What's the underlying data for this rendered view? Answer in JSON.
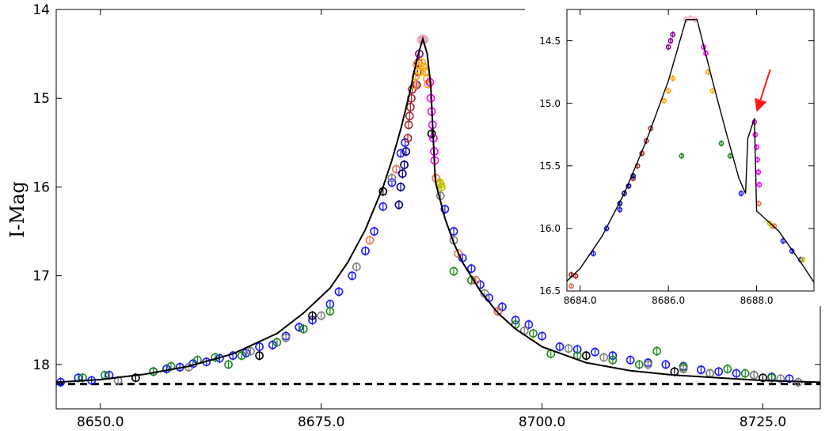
{
  "chart_data": [
    {
      "type": "scatter",
      "title": "",
      "xlabel": "",
      "ylabel": "I-Mag",
      "xlim": [
        8645.0,
        8731.5
      ],
      "ylim": [
        18.5,
        14.0
      ],
      "y_inverted": true,
      "x_ticks": [
        8650.0,
        8675.0,
        8700.0,
        8725.0
      ],
      "x_tick_labels": [
        "8650.0",
        "8675.0",
        "8700.0",
        "8725.0"
      ],
      "y_ticks": [
        14,
        15,
        16,
        17,
        18
      ],
      "y_tick_labels": [
        "14",
        "15",
        "16",
        "17",
        "18"
      ],
      "baseline_mag": 18.22,
      "model": {
        "t0": 8686.5,
        "peak_mag": 14.33,
        "x": [
          8645,
          8650,
          8655,
          8660,
          8665,
          8670,
          8673,
          8676,
          8678,
          8680,
          8682,
          8683,
          8684,
          8685,
          8685.5,
          8686,
          8686.5,
          8687,
          8687.4,
          8687.9,
          8688,
          8689,
          8690,
          8691,
          8693,
          8695,
          8697,
          8700,
          8705,
          8710,
          8715,
          8720,
          8725,
          8731.5
        ],
        "y": [
          18.2,
          18.17,
          18.11,
          18.02,
          17.88,
          17.65,
          17.42,
          17.14,
          16.85,
          16.48,
          16.0,
          15.7,
          15.35,
          14.95,
          14.71,
          14.5,
          14.33,
          14.5,
          14.86,
          15.9,
          15.97,
          16.35,
          16.63,
          16.85,
          17.17,
          17.42,
          17.6,
          17.8,
          17.98,
          18.07,
          18.12,
          18.15,
          18.18,
          18.2
        ]
      },
      "series": [
        {
          "name": "blue observatory",
          "color": "#1a1aff",
          "x": [
            8645.5,
            8647.5,
            8649,
            8651,
            8656,
            8657.5,
            8659,
            8660.5,
            8662,
            8663.5,
            8665,
            8666.5,
            8668,
            8669.5,
            8671,
            8672.5,
            8674,
            8676,
            8677,
            8678.5,
            8680,
            8681,
            8682,
            8683,
            8684,
            8684.5,
            8689,
            8690,
            8691,
            8692,
            8693,
            8694,
            8695.5,
            8697,
            8698.5,
            8700,
            8702,
            8704,
            8706,
            8708,
            8710,
            8712,
            8714,
            8716,
            8718,
            8720,
            8722,
            8724,
            8726,
            8728
          ],
          "y": [
            18.2,
            18.15,
            18.18,
            18.12,
            18.08,
            18.05,
            18.03,
            17.99,
            17.97,
            17.93,
            17.9,
            17.87,
            17.8,
            17.78,
            17.68,
            17.58,
            17.5,
            17.32,
            17.18,
            17.0,
            16.72,
            16.5,
            16.22,
            15.95,
            15.62,
            15.5,
            16.25,
            16.5,
            16.8,
            16.92,
            17.1,
            17.25,
            17.35,
            17.5,
            17.55,
            17.68,
            17.8,
            17.83,
            17.86,
            17.9,
            17.95,
            17.98,
            18.0,
            18.02,
            18.06,
            18.08,
            18.1,
            18.12,
            18.14,
            18.16
          ]
        },
        {
          "name": "green observatory",
          "color": "#1f8a1f",
          "x": [
            8648,
            8650.5,
            8656,
            8658,
            8661,
            8663,
            8664.5,
            8666,
            8670,
            8673,
            8676,
            8690,
            8692,
            8697,
            8699,
            8701,
            8704,
            8708,
            8711,
            8713,
            8716,
            8719,
            8721,
            8723,
            8726
          ],
          "y": [
            18.15,
            18.12,
            18.08,
            18.02,
            17.95,
            17.92,
            18.0,
            17.9,
            17.75,
            17.6,
            17.4,
            16.95,
            17.05,
            17.55,
            17.65,
            17.88,
            17.9,
            17.95,
            18.0,
            17.85,
            18.03,
            18.1,
            18.05,
            18.1,
            18.15
          ]
        },
        {
          "name": "grey observatory",
          "color": "#808080",
          "x": [
            8652,
            8660,
            8667,
            8671,
            8675,
            8679,
            8683,
            8686.5,
            8688.5,
            8690,
            8693.5,
            8698,
            8703,
            8707,
            8712,
            8716,
            8719,
            8724,
            8727,
            8729
          ],
          "y": [
            18.18,
            18.03,
            17.85,
            17.7,
            17.45,
            16.9,
            15.9,
            14.34,
            16.1,
            16.6,
            17.2,
            17.62,
            17.82,
            17.92,
            18.0,
            18.05,
            18.1,
            18.12,
            18.16,
            18.2
          ]
        },
        {
          "name": "black observatory",
          "color": "#000000",
          "x": [
            8654,
            8668,
            8674,
            8682,
            8687.5,
            8695,
            8705,
            8715,
            8725
          ],
          "y": [
            18.15,
            17.9,
            17.45,
            16.05,
            15.4,
            17.4,
            17.9,
            18.08,
            18.15
          ]
        },
        {
          "name": "salmon observatory",
          "color": "#e9735a",
          "x": [
            8680.5,
            8683.5,
            8688,
            8690.5,
            8692.5,
            8695
          ],
          "y": [
            16.6,
            15.8,
            15.9,
            16.75,
            17.05,
            17.4
          ]
        },
        {
          "name": "brown observatory",
          "color": "#a52a2a",
          "x": [
            8684.8,
            8684.9,
            8685,
            8685.1,
            8685.2,
            8685.3
          ],
          "y": [
            15.45,
            15.3,
            15.2,
            15.1,
            15.0,
            14.9
          ]
        },
        {
          "name": "navy observatory",
          "color": "#00008b",
          "x": [
            8683.8,
            8684,
            8684.2,
            8684.4,
            8684.6
          ],
          "y": [
            16.2,
            16.0,
            15.85,
            15.75,
            15.6
          ]
        },
        {
          "name": "purple observatory",
          "color": "#8b008b",
          "x": [
            8685.8,
            8685.9,
            8686,
            8686.1
          ],
          "y": [
            14.85,
            14.7,
            14.6,
            14.5
          ]
        },
        {
          "name": "orange observatory",
          "color": "#ffa500",
          "x": [
            8685.6,
            8685.7,
            8685.8,
            8686.2,
            8686.4,
            8686.6,
            8686.8,
            8687,
            8687.1
          ],
          "y": [
            14.85,
            14.75,
            14.62,
            14.7,
            14.6,
            14.65,
            14.7,
            14.78,
            14.84
          ]
        },
        {
          "name": "magenta observatory",
          "color": "#ff00ff",
          "x": [
            8687.3,
            8687.4,
            8687.5,
            8687.6,
            8687.7,
            8687.8,
            8687.85
          ],
          "y": [
            14.82,
            15.0,
            15.15,
            15.3,
            15.45,
            15.6,
            15.7
          ]
        },
        {
          "name": "pink observatory",
          "color": "#f4a6c0",
          "x": [
            8686.3,
            8686.5,
            8686.7
          ],
          "y": [
            14.34,
            14.33,
            14.34
          ]
        },
        {
          "name": "olive observatory",
          "color": "#c0c000",
          "x": [
            8688.4,
            8688.5,
            8688.6
          ],
          "y": [
            15.95,
            15.97,
            16.0
          ]
        }
      ]
    },
    {
      "type": "scatter",
      "title": "",
      "xlabel": "",
      "ylabel": "",
      "xlim": [
        8683.7,
        8689.3
      ],
      "ylim": [
        16.5,
        14.25
      ],
      "y_inverted": true,
      "x_ticks": [
        8684.0,
        8686.0,
        8688.0
      ],
      "x_tick_labels": [
        "8684.0",
        "8686.0",
        "8688.0"
      ],
      "y_ticks": [
        14.5,
        15.0,
        15.5,
        16.0,
        16.5
      ],
      "y_tick_labels": [
        "14.5",
        "15.0",
        "15.5",
        "16.0",
        "16.5"
      ],
      "annotation": "red arrow pointing to caustic spike near t = 8687.9",
      "arrow_target": [
        8687.95,
        15.12
      ],
      "model": {
        "x": [
          8683.7,
          8684.0,
          8684.5,
          8685.0,
          8685.5,
          8686.0,
          8686.4,
          8686.65,
          8687.0,
          8687.3,
          8687.6,
          8687.75,
          8687.8,
          8687.95,
          8688.0,
          8688.5,
          8689.0,
          8689.3
        ],
        "y": [
          16.42,
          16.32,
          16.06,
          15.72,
          15.3,
          14.82,
          14.33,
          14.33,
          14.82,
          15.22,
          15.6,
          15.72,
          15.28,
          15.12,
          15.86,
          16.02,
          16.27,
          16.43
        ]
      },
      "series": [
        {
          "name": "brown observatory",
          "color": "#a52a2a",
          "x": [
            8683.8,
            8683.9,
            8685.2,
            8685.3,
            8685.4,
            8685.5,
            8685.6
          ],
          "y": [
            16.37,
            16.38,
            15.6,
            15.5,
            15.4,
            15.3,
            15.2
          ]
        },
        {
          "name": "navy observatory",
          "color": "#00008b",
          "x": [
            8684.9,
            8685.0,
            8685.1,
            8685.2
          ],
          "y": [
            15.8,
            15.72,
            15.66,
            15.58
          ]
        },
        {
          "name": "blue observatory",
          "color": "#1a1aff",
          "x": [
            8684.3,
            8684.6,
            8684.9,
            8687.65,
            8688.6,
            8688.8,
            8689.0
          ],
          "y": [
            16.2,
            16.0,
            15.85,
            15.72,
            16.1,
            16.18,
            16.25
          ]
        },
        {
          "name": "orange observatory",
          "color": "#ffa500",
          "x": [
            8685.9,
            8686.0,
            8686.1,
            8686.9,
            8687.0
          ],
          "y": [
            14.98,
            14.9,
            14.8,
            14.75,
            14.9
          ]
        },
        {
          "name": "purple observatory",
          "color": "#8b008b",
          "x": [
            8686.0,
            8686.05,
            8686.1
          ],
          "y": [
            14.55,
            14.5,
            14.45
          ]
        },
        {
          "name": "magenta observatory",
          "color": "#ff00ff",
          "x": [
            8686.8,
            8686.85,
            8687.95,
            8687.97,
            8688.0,
            8688.02,
            8688.04,
            8688.06
          ],
          "y": [
            14.55,
            14.6,
            15.15,
            15.25,
            15.35,
            15.45,
            15.55,
            15.65
          ]
        },
        {
          "name": "pink observatory",
          "color": "#f4a6c0",
          "x": [
            8686.4,
            8686.5,
            8686.6
          ],
          "y": [
            14.33,
            14.32,
            14.33
          ]
        },
        {
          "name": "olive observatory",
          "color": "#c0c000",
          "x": [
            8688.3,
            8688.35,
            8689.05
          ],
          "y": [
            15.96,
            15.98,
            16.25
          ]
        },
        {
          "name": "green observatory",
          "color": "#1f8a1f",
          "x": [
            8686.3,
            8687.2,
            8687.4
          ],
          "y": [
            15.42,
            15.32,
            15.42
          ]
        },
        {
          "name": "salmon observatory",
          "color": "#e9735a",
          "x": [
            8683.8,
            8688.05,
            8688.4
          ],
          "y": [
            16.46,
            15.8,
            15.98
          ]
        }
      ]
    }
  ]
}
